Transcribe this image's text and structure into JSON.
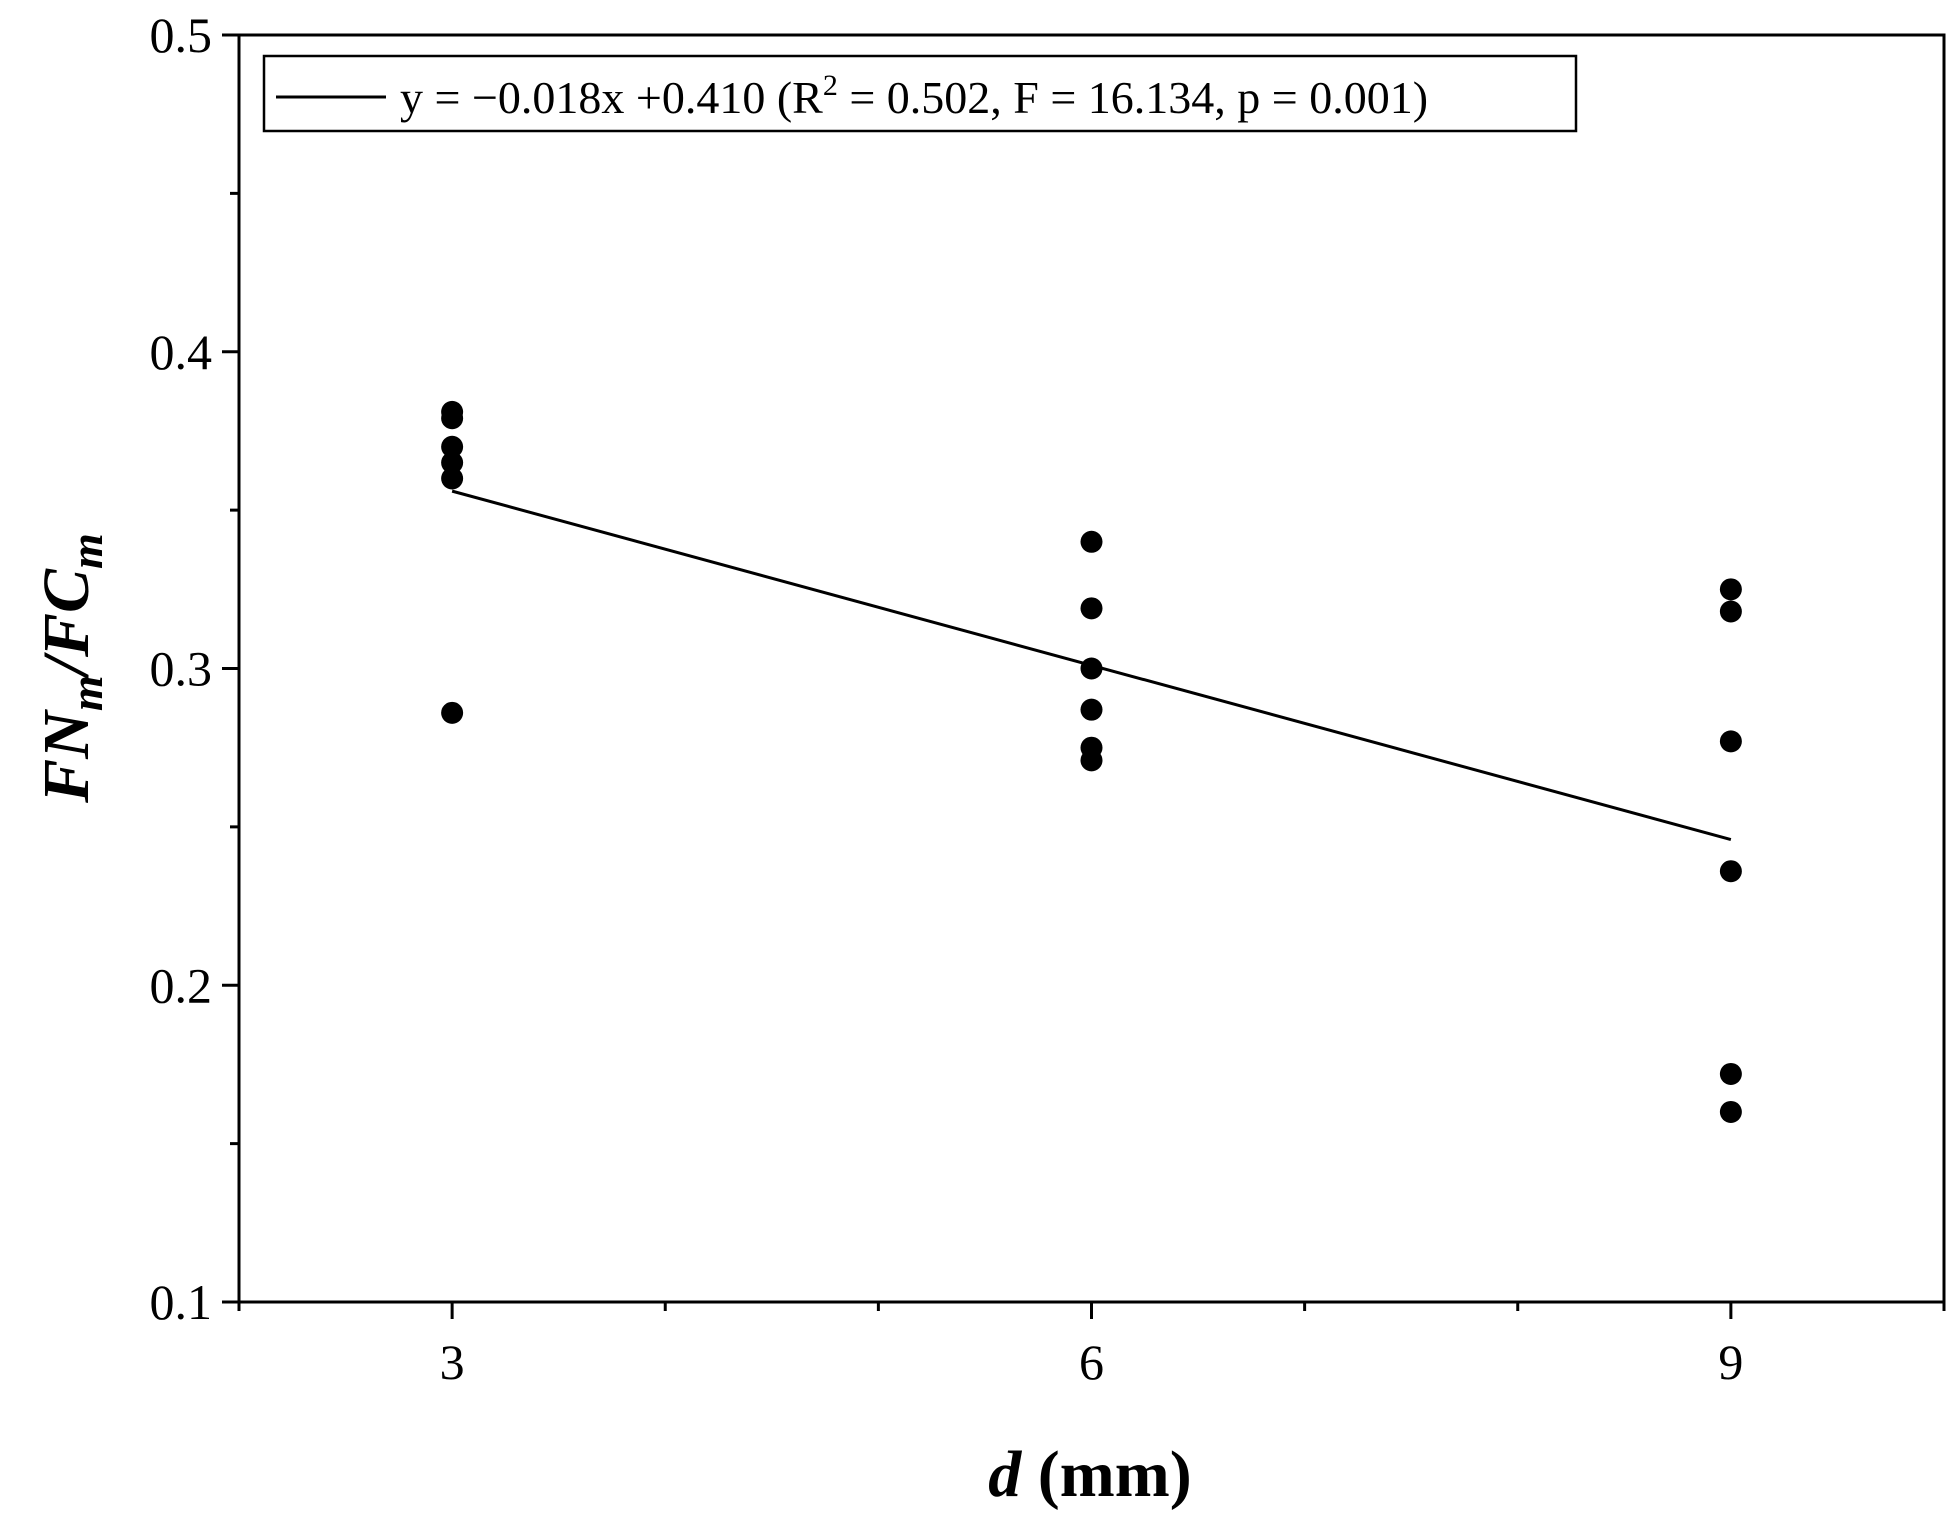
{
  "chart_data": {
    "type": "scatter",
    "title": "",
    "xlabel": {
      "var": "d",
      "unit": " (mm)"
    },
    "ylabel": {
      "p1": "FN",
      "s1": "m",
      "p2": "/FC",
      "s2": "m"
    },
    "xlim": [
      2,
      10
    ],
    "ylim": [
      0.1,
      0.5
    ],
    "x_ticks": [
      3,
      6,
      9
    ],
    "x_tick_labels": [
      "3",
      "6",
      "9"
    ],
    "x_minor_ticks": [
      2,
      4,
      5,
      7,
      8,
      10
    ],
    "y_ticks": [
      0.1,
      0.2,
      0.3,
      0.4,
      0.5
    ],
    "y_tick_labels": [
      "0.1",
      "0.2",
      "0.3",
      "0.4",
      "0.5"
    ],
    "y_minor_ticks": [
      0.15,
      0.25,
      0.35,
      0.45
    ],
    "grid": false,
    "legend_position": "top-left",
    "series": [
      {
        "type": "scatter",
        "color": "#000000",
        "points": [
          [
            3,
            0.381
          ],
          [
            3,
            0.379
          ],
          [
            3,
            0.37
          ],
          [
            3,
            0.365
          ],
          [
            3,
            0.36
          ],
          [
            3,
            0.286
          ],
          [
            6,
            0.34
          ],
          [
            6,
            0.319
          ],
          [
            6,
            0.3
          ],
          [
            6,
            0.287
          ],
          [
            6,
            0.275
          ],
          [
            6,
            0.271
          ],
          [
            9,
            0.325
          ],
          [
            9,
            0.318
          ],
          [
            9,
            0.277
          ],
          [
            9,
            0.236
          ],
          [
            9,
            0.172
          ],
          [
            9,
            0.16
          ]
        ]
      },
      {
        "type": "line",
        "color": "#000000",
        "points": [
          [
            3,
            0.356
          ],
          [
            9,
            0.246
          ]
        ],
        "legend": {
          "prefix": "y = −0.018x +0.410 (R",
          "sup": "2",
          "suffix": " = 0.502, F = 16.134, p = 0.001)"
        }
      }
    ]
  }
}
